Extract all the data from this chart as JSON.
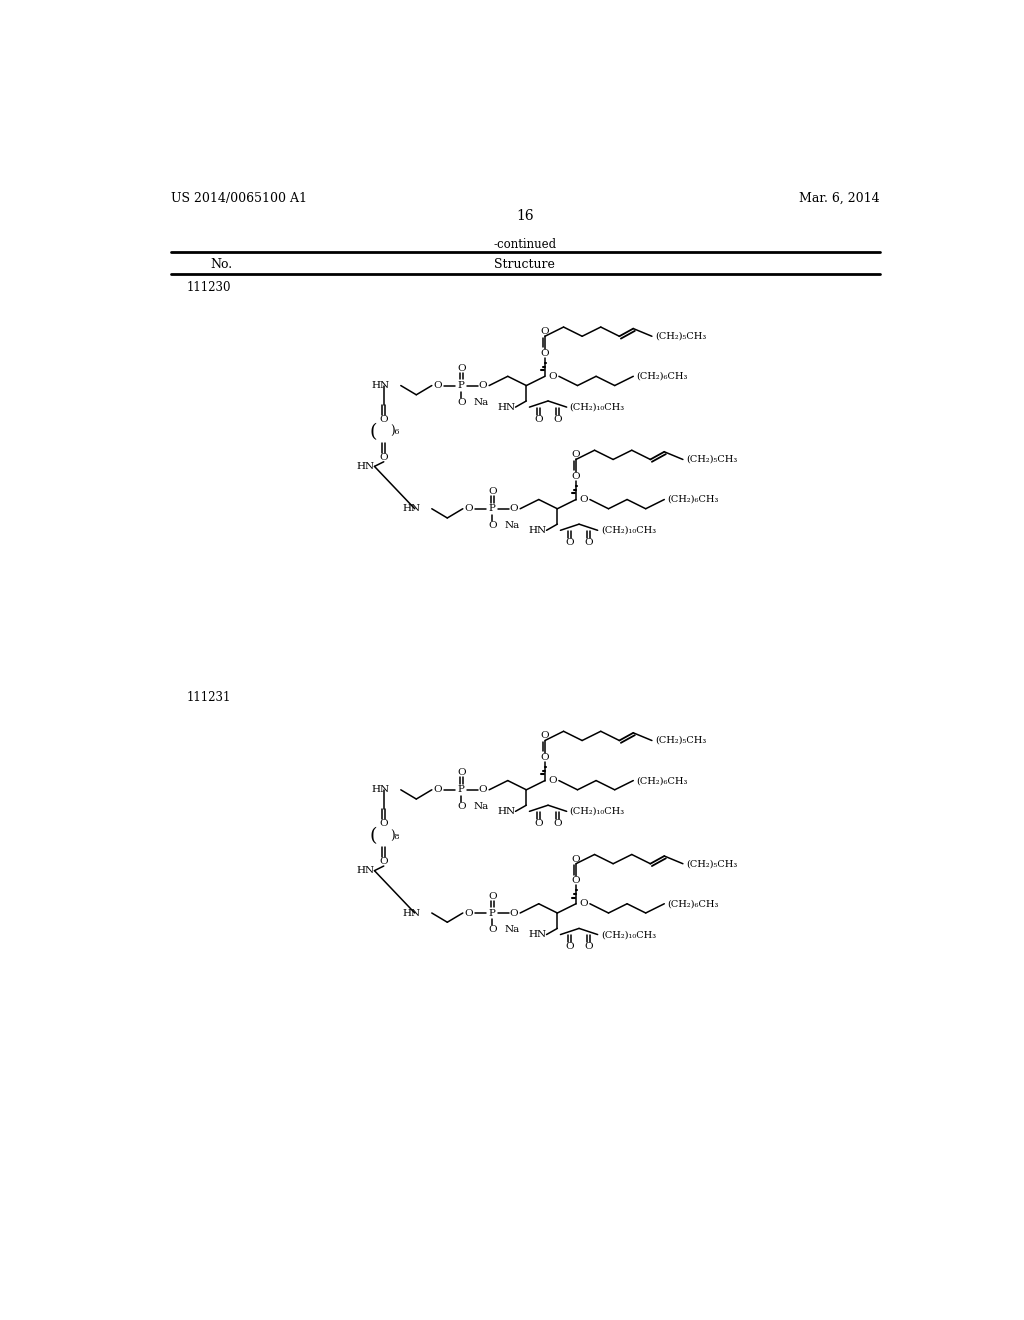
{
  "page_width": 10.24,
  "page_height": 13.2,
  "background": "#ffffff",
  "header_left": "US 2014/0065100 A1",
  "header_right": "Mar. 6, 2014",
  "page_number": "16",
  "table_label_continued": "-continued",
  "col_no": "No.",
  "col_structure": "Structure",
  "compound1_no": "111230",
  "compound2_no": "111231",
  "linker1": "6",
  "linker2": "8"
}
